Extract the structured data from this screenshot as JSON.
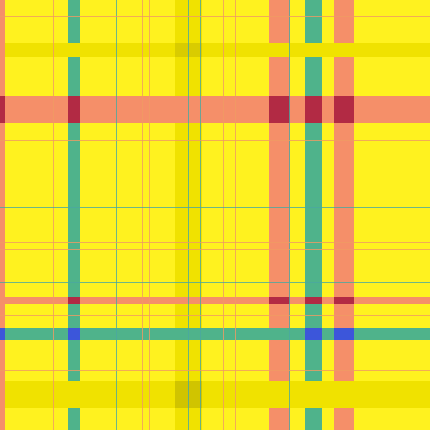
{
  "pattern": {
    "name": "plaid-texture",
    "colors": {
      "base": "#FFF21F",
      "yellow_band": "#F0E200",
      "orange": "#F58F69",
      "teal": "#4FB38B",
      "dark_red": "#B22A44",
      "blue": "#3C56DA",
      "thin_line_teal": "#4AA7A0",
      "thin_line_orange": "#F09A63"
    },
    "visible_text": []
  }
}
